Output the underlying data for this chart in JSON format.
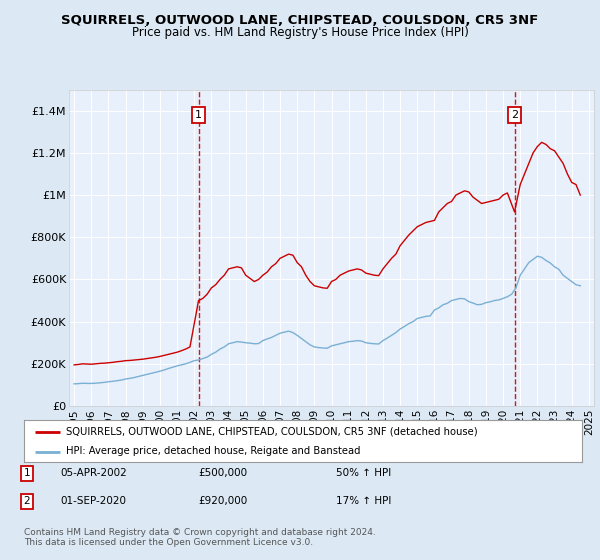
{
  "title": "SQUIRRELS, OUTWOOD LANE, CHIPSTEAD, COULSDON, CR5 3NF",
  "subtitle": "Price paid vs. HM Land Registry's House Price Index (HPI)",
  "bg_color": "#dce9f5",
  "plot_bg_color": "#e8f0fb",
  "red_line_color": "#cc0000",
  "blue_line_color": "#7ab0d4",
  "marker1_x": 2002.25,
  "marker1_label": "1",
  "marker1_date": "05-APR-2002",
  "marker1_price": "£500,000",
  "marker1_hpi": "50% ↑ HPI",
  "marker2_x": 2020.67,
  "marker2_label": "2",
  "marker2_date": "01-SEP-2020",
  "marker2_price": "£920,000",
  "marker2_hpi": "17% ↑ HPI",
  "legend_line1": "SQUIRRELS, OUTWOOD LANE, CHIPSTEAD, COULSDON, CR5 3NF (detached house)",
  "legend_line2": "HPI: Average price, detached house, Reigate and Banstead",
  "footer": "Contains HM Land Registry data © Crown copyright and database right 2024.\nThis data is licensed under the Open Government Licence v3.0.",
  "ylim": [
    0,
    1500000
  ],
  "yticks": [
    0,
    200000,
    400000,
    600000,
    800000,
    1000000,
    1200000,
    1400000
  ],
  "ytick_labels": [
    "£0",
    "£200K",
    "£400K",
    "£600K",
    "£800K",
    "£1M",
    "£1.2M",
    "£1.4M"
  ],
  "red_x": [
    1995.0,
    1995.25,
    1995.5,
    1995.75,
    1996.0,
    1996.25,
    1996.5,
    1996.75,
    1997.0,
    1997.25,
    1997.5,
    1997.75,
    1998.0,
    1998.25,
    1998.5,
    1998.75,
    1999.0,
    1999.25,
    1999.5,
    1999.75,
    2000.0,
    2000.25,
    2000.5,
    2000.75,
    2001.0,
    2001.25,
    2001.5,
    2001.75,
    2002.25,
    2002.5,
    2002.75,
    2003.0,
    2003.25,
    2003.5,
    2003.75,
    2004.0,
    2004.25,
    2004.5,
    2004.75,
    2005.0,
    2005.25,
    2005.5,
    2005.75,
    2006.0,
    2006.25,
    2006.5,
    2006.75,
    2007.0,
    2007.25,
    2007.5,
    2007.75,
    2008.0,
    2008.25,
    2008.5,
    2008.75,
    2009.0,
    2009.25,
    2009.5,
    2009.75,
    2010.0,
    2010.25,
    2010.5,
    2010.75,
    2011.0,
    2011.25,
    2011.5,
    2011.75,
    2012.0,
    2012.25,
    2012.5,
    2012.75,
    2013.0,
    2013.25,
    2013.5,
    2013.75,
    2014.0,
    2014.25,
    2014.5,
    2014.75,
    2015.0,
    2015.25,
    2015.5,
    2015.75,
    2016.0,
    2016.25,
    2016.5,
    2016.75,
    2017.0,
    2017.25,
    2017.5,
    2017.75,
    2018.0,
    2018.25,
    2018.5,
    2018.75,
    2019.0,
    2019.25,
    2019.5,
    2019.75,
    2020.0,
    2020.25,
    2020.67,
    2021.0,
    2021.25,
    2021.5,
    2021.75,
    2022.0,
    2022.25,
    2022.5,
    2022.75,
    2023.0,
    2023.25,
    2023.5,
    2023.75,
    2024.0,
    2024.25,
    2024.5
  ],
  "red_y": [
    195000,
    197000,
    200000,
    199000,
    198000,
    200000,
    202000,
    203000,
    205000,
    207000,
    210000,
    212000,
    215000,
    216000,
    218000,
    220000,
    222000,
    225000,
    228000,
    231000,
    235000,
    240000,
    245000,
    250000,
    255000,
    262000,
    270000,
    280000,
    500000,
    510000,
    530000,
    560000,
    575000,
    600000,
    620000,
    650000,
    655000,
    660000,
    655000,
    620000,
    605000,
    590000,
    600000,
    620000,
    635000,
    660000,
    675000,
    700000,
    710000,
    720000,
    715000,
    680000,
    660000,
    620000,
    590000,
    570000,
    565000,
    560000,
    558000,
    590000,
    600000,
    620000,
    630000,
    640000,
    645000,
    650000,
    645000,
    630000,
    625000,
    620000,
    618000,
    650000,
    675000,
    700000,
    720000,
    760000,
    785000,
    810000,
    830000,
    850000,
    860000,
    870000,
    875000,
    880000,
    920000,
    940000,
    960000,
    970000,
    1000000,
    1010000,
    1020000,
    1015000,
    990000,
    975000,
    960000,
    965000,
    970000,
    975000,
    980000,
    1000000,
    1010000,
    920000,
    1050000,
    1100000,
    1150000,
    1200000,
    1230000,
    1250000,
    1240000,
    1220000,
    1210000,
    1180000,
    1150000,
    1100000,
    1060000,
    1050000,
    1000000
  ],
  "blue_x": [
    1995.0,
    1995.25,
    1995.5,
    1995.75,
    1996.0,
    1996.25,
    1996.5,
    1996.75,
    1997.0,
    1997.25,
    1997.5,
    1997.75,
    1998.0,
    1998.25,
    1998.5,
    1998.75,
    1999.0,
    1999.25,
    1999.5,
    1999.75,
    2000.0,
    2000.25,
    2000.5,
    2000.75,
    2001.0,
    2001.25,
    2001.5,
    2001.75,
    2002.0,
    2002.25,
    2002.5,
    2002.75,
    2003.0,
    2003.25,
    2003.5,
    2003.75,
    2004.0,
    2004.25,
    2004.5,
    2004.75,
    2005.0,
    2005.25,
    2005.5,
    2005.75,
    2006.0,
    2006.25,
    2006.5,
    2006.75,
    2007.0,
    2007.25,
    2007.5,
    2007.75,
    2008.0,
    2008.25,
    2008.5,
    2008.75,
    2009.0,
    2009.25,
    2009.5,
    2009.75,
    2010.0,
    2010.25,
    2010.5,
    2010.75,
    2011.0,
    2011.25,
    2011.5,
    2011.75,
    2012.0,
    2012.25,
    2012.5,
    2012.75,
    2013.0,
    2013.25,
    2013.5,
    2013.75,
    2014.0,
    2014.25,
    2014.5,
    2014.75,
    2015.0,
    2015.25,
    2015.5,
    2015.75,
    2016.0,
    2016.25,
    2016.5,
    2016.75,
    2017.0,
    2017.25,
    2017.5,
    2017.75,
    2018.0,
    2018.25,
    2018.5,
    2018.75,
    2019.0,
    2019.25,
    2019.5,
    2019.75,
    2020.0,
    2020.25,
    2020.5,
    2020.75,
    2021.0,
    2021.25,
    2021.5,
    2021.75,
    2022.0,
    2022.25,
    2022.5,
    2022.75,
    2023.0,
    2023.25,
    2023.5,
    2023.75,
    2024.0,
    2024.25,
    2024.5
  ],
  "blue_y": [
    105000,
    106000,
    108000,
    107000,
    107000,
    108000,
    110000,
    112000,
    115000,
    117000,
    120000,
    123000,
    128000,
    131000,
    135000,
    140000,
    145000,
    150000,
    155000,
    160000,
    165000,
    171000,
    178000,
    184000,
    190000,
    195000,
    200000,
    207000,
    215000,
    218000,
    225000,
    232000,
    245000,
    255000,
    270000,
    280000,
    295000,
    300000,
    305000,
    303000,
    300000,
    298000,
    295000,
    296000,
    310000,
    318000,
    325000,
    335000,
    345000,
    350000,
    355000,
    348000,
    335000,
    320000,
    305000,
    290000,
    280000,
    277000,
    275000,
    274000,
    285000,
    290000,
    295000,
    300000,
    305000,
    307000,
    310000,
    308000,
    300000,
    297000,
    295000,
    294000,
    310000,
    322000,
    335000,
    348000,
    365000,
    377000,
    390000,
    400000,
    415000,
    420000,
    425000,
    427000,
    455000,
    465000,
    480000,
    487000,
    500000,
    505000,
    510000,
    508000,
    495000,
    488000,
    480000,
    482000,
    490000,
    494000,
    500000,
    503000,
    510000,
    518000,
    530000,
    560000,
    620000,
    650000,
    680000,
    695000,
    710000,
    705000,
    690000,
    678000,
    660000,
    648000,
    620000,
    605000,
    590000,
    575000,
    570000
  ],
  "xticks": [
    1995,
    1996,
    1997,
    1998,
    1999,
    2000,
    2001,
    2002,
    2003,
    2004,
    2005,
    2006,
    2007,
    2008,
    2009,
    2010,
    2011,
    2012,
    2013,
    2014,
    2015,
    2016,
    2017,
    2018,
    2019,
    2020,
    2021,
    2022,
    2023,
    2024,
    2025
  ]
}
